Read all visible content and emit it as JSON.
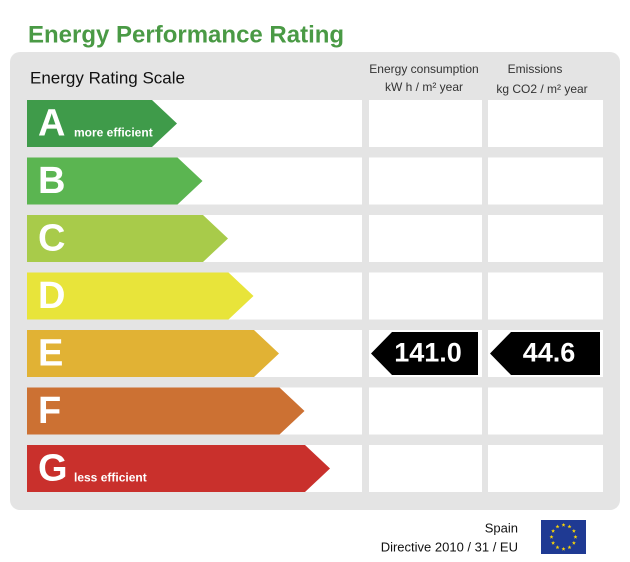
{
  "header": {
    "title": "Energy Performance Rating"
  },
  "scale": {
    "title": "Energy Rating Scale",
    "columns": [
      {
        "line1": "Energy consumption",
        "line2": "kW h / m² year"
      },
      {
        "line1": "Emissions",
        "line2": "kg CO2 / m² year"
      }
    ]
  },
  "ratings": [
    {
      "letter": "A",
      "note": "more efficient",
      "color": "#3f9b4a"
    },
    {
      "letter": "B",
      "color": "#5bb551"
    },
    {
      "letter": "C",
      "color": "#a8cb4a"
    },
    {
      "letter": "D",
      "color": "#e8e43a"
    },
    {
      "letter": "E",
      "color": "#e1b234",
      "consumption": "141.0",
      "emissions": "44.6"
    },
    {
      "letter": "F",
      "color": "#cc7133"
    },
    {
      "letter": "G",
      "note": "less efficient",
      "color": "#c9302c"
    }
  ],
  "footer": {
    "country": "Spain",
    "directive": "Directive 2010 / 31 / EU"
  }
}
